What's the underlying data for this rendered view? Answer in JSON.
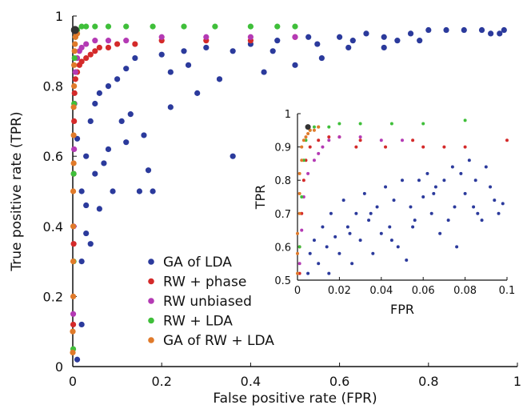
{
  "chart_data": [
    {
      "type": "scatter",
      "title": "",
      "xlabel": "False positive rate (FPR)",
      "ylabel": "True positive rate (TPR)",
      "xlim": [
        0,
        1
      ],
      "ylim": [
        0,
        1
      ],
      "xticks": [
        "0",
        "0.2",
        "0.4",
        "0.6",
        "0.8",
        "1"
      ],
      "yticks": [
        "0",
        "0.2",
        "0.4",
        "0.6",
        "0.8",
        "1"
      ],
      "grid": false,
      "legend_position": "lower-left",
      "series": [
        {
          "name": "GA of LDA",
          "color": "#2b3a9c",
          "points": [
            [
              0.01,
              0.02
            ],
            [
              0.02,
              0.12
            ],
            [
              0.02,
              0.3
            ],
            [
              0.03,
              0.46
            ],
            [
              0.01,
              0.65
            ],
            [
              0.02,
              0.5
            ],
            [
              0.03,
              0.6
            ],
            [
              0.04,
              0.7
            ],
            [
              0.05,
              0.55
            ],
            [
              0.06,
              0.45
            ],
            [
              0.05,
              0.75
            ],
            [
              0.06,
              0.78
            ],
            [
              0.08,
              0.8
            ],
            [
              0.08,
              0.62
            ],
            [
              0.09,
              0.5
            ],
            [
              0.1,
              0.82
            ],
            [
              0.11,
              0.7
            ],
            [
              0.12,
              0.85
            ],
            [
              0.13,
              0.72
            ],
            [
              0.14,
              0.88
            ],
            [
              0.16,
              0.66
            ],
            [
              0.18,
              0.5
            ],
            [
              0.2,
              0.89
            ],
            [
              0.22,
              0.74
            ],
            [
              0.25,
              0.9
            ],
            [
              0.28,
              0.78
            ],
            [
              0.3,
              0.91
            ],
            [
              0.33,
              0.82
            ],
            [
              0.36,
              0.9
            ],
            [
              0.36,
              0.6
            ],
            [
              0.4,
              0.92
            ],
            [
              0.43,
              0.84
            ],
            [
              0.46,
              0.93
            ],
            [
              0.5,
              0.86
            ],
            [
              0.53,
              0.94
            ],
            [
              0.56,
              0.88
            ],
            [
              0.6,
              0.94
            ],
            [
              0.63,
              0.93
            ],
            [
              0.66,
              0.95
            ],
            [
              0.7,
              0.94
            ],
            [
              0.73,
              0.93
            ],
            [
              0.76,
              0.95
            ],
            [
              0.8,
              0.96
            ],
            [
              0.84,
              0.96
            ],
            [
              0.88,
              0.96
            ],
            [
              0.92,
              0.96
            ],
            [
              0.94,
              0.95
            ],
            [
              0.96,
              0.95
            ],
            [
              0.97,
              0.96
            ],
            [
              0.15,
              0.5
            ],
            [
              0.17,
              0.56
            ],
            [
              0.12,
              0.64
            ],
            [
              0.03,
              0.38
            ],
            [
              0.04,
              0.35
            ],
            [
              0.07,
              0.58
            ],
            [
              0.22,
              0.84
            ],
            [
              0.26,
              0.86
            ],
            [
              0.45,
              0.9
            ],
            [
              0.55,
              0.92
            ],
            [
              0.62,
              0.91
            ],
            [
              0.7,
              0.91
            ],
            [
              0.78,
              0.93
            ]
          ]
        },
        {
          "name": "RW + phase",
          "color": "#d42a2a",
          "points": [
            [
              0.001,
              0.12
            ],
            [
              0.002,
              0.35
            ],
            [
              0.002,
              0.55
            ],
            [
              0.003,
              0.7
            ],
            [
              0.004,
              0.78
            ],
            [
              0.006,
              0.82
            ],
            [
              0.01,
              0.84
            ],
            [
              0.015,
              0.86
            ],
            [
              0.02,
              0.87
            ],
            [
              0.03,
              0.88
            ],
            [
              0.04,
              0.89
            ],
            [
              0.05,
              0.9
            ],
            [
              0.06,
              0.91
            ],
            [
              0.08,
              0.91
            ],
            [
              0.1,
              0.92
            ],
            [
              0.14,
              0.92
            ],
            [
              0.2,
              0.93
            ],
            [
              0.3,
              0.93
            ],
            [
              0.4,
              0.93
            ],
            [
              0.5,
              0.94
            ]
          ]
        },
        {
          "name": "RW unbiased",
          "color": "#b43ab4",
          "points": [
            [
              0.001,
              0.15
            ],
            [
              0.002,
              0.4
            ],
            [
              0.003,
              0.62
            ],
            [
              0.004,
              0.75
            ],
            [
              0.006,
              0.84
            ],
            [
              0.01,
              0.88
            ],
            [
              0.015,
              0.9
            ],
            [
              0.02,
              0.91
            ],
            [
              0.03,
              0.92
            ],
            [
              0.05,
              0.93
            ],
            [
              0.08,
              0.93
            ],
            [
              0.12,
              0.93
            ],
            [
              0.2,
              0.94
            ],
            [
              0.3,
              0.94
            ],
            [
              0.4,
              0.94
            ],
            [
              0.5,
              0.94
            ]
          ]
        },
        {
          "name": "RW + LDA",
          "color": "#3fbf3a",
          "points": [
            [
              0.001,
              0.05
            ],
            [
              0.002,
              0.3
            ],
            [
              0.002,
              0.55
            ],
            [
              0.003,
              0.75
            ],
            [
              0.004,
              0.88
            ],
            [
              0.006,
              0.94
            ],
            [
              0.01,
              0.96
            ],
            [
              0.02,
              0.97
            ],
            [
              0.03,
              0.97
            ],
            [
              0.05,
              0.97
            ],
            [
              0.08,
              0.97
            ],
            [
              0.12,
              0.97
            ],
            [
              0.18,
              0.97
            ],
            [
              0.25,
              0.97
            ],
            [
              0.32,
              0.97
            ],
            [
              0.4,
              0.97
            ],
            [
              0.46,
              0.97
            ],
            [
              0.5,
              0.97
            ]
          ]
        },
        {
          "name": "GA of RW + LDA",
          "color": "#e07a2a",
          "points": [
            [
              0.0,
              0.04
            ],
            [
              0.0,
              0.1
            ],
            [
              0.001,
              0.2
            ],
            [
              0.001,
              0.3
            ],
            [
              0.001,
              0.4
            ],
            [
              0.001,
              0.5
            ],
            [
              0.002,
              0.58
            ],
            [
              0.002,
              0.66
            ],
            [
              0.002,
              0.74
            ],
            [
              0.003,
              0.8
            ],
            [
              0.003,
              0.86
            ],
            [
              0.004,
              0.9
            ],
            [
              0.005,
              0.92
            ],
            [
              0.006,
              0.94
            ],
            [
              0.008,
              0.95
            ],
            [
              0.01,
              0.95
            ]
          ]
        }
      ],
      "highlight_point": {
        "x": 0.005,
        "y": 0.96,
        "color": "#333333"
      }
    },
    {
      "type": "scatter",
      "title": "",
      "xlabel": "FPR",
      "ylabel": "TPR",
      "xlim": [
        0,
        0.1
      ],
      "ylim": [
        0.5,
        1
      ],
      "xticks": [
        "0",
        "0.02",
        "0.04",
        "0.06",
        "0.08",
        "0.1"
      ],
      "yticks": [
        "0.5",
        "0.6",
        "0.7",
        "0.8",
        "0.9",
        "1"
      ],
      "grid": false,
      "series": [
        {
          "name": "GA of LDA",
          "color": "#2b3a9c",
          "points": [
            [
              0.005,
              0.52
            ],
            [
              0.006,
              0.58
            ],
            [
              0.008,
              0.62
            ],
            [
              0.01,
              0.55
            ],
            [
              0.012,
              0.66
            ],
            [
              0.014,
              0.6
            ],
            [
              0.016,
              0.7
            ],
            [
              0.018,
              0.63
            ],
            [
              0.02,
              0.58
            ],
            [
              0.022,
              0.74
            ],
            [
              0.024,
              0.66
            ],
            [
              0.026,
              0.55
            ],
            [
              0.028,
              0.7
            ],
            [
              0.03,
              0.62
            ],
            [
              0.032,
              0.76
            ],
            [
              0.034,
              0.68
            ],
            [
              0.036,
              0.58
            ],
            [
              0.038,
              0.72
            ],
            [
              0.04,
              0.64
            ],
            [
              0.042,
              0.78
            ],
            [
              0.044,
              0.66
            ],
            [
              0.046,
              0.74
            ],
            [
              0.048,
              0.6
            ],
            [
              0.05,
              0.8
            ],
            [
              0.052,
              0.56
            ],
            [
              0.054,
              0.72
            ],
            [
              0.056,
              0.68
            ],
            [
              0.058,
              0.8
            ],
            [
              0.06,
              0.75
            ],
            [
              0.062,
              0.82
            ],
            [
              0.064,
              0.7
            ],
            [
              0.066,
              0.78
            ],
            [
              0.068,
              0.64
            ],
            [
              0.07,
              0.8
            ],
            [
              0.072,
              0.68
            ],
            [
              0.074,
              0.84
            ],
            [
              0.076,
              0.6
            ],
            [
              0.078,
              0.82
            ],
            [
              0.08,
              0.76
            ],
            [
              0.082,
              0.86
            ],
            [
              0.084,
              0.72
            ],
            [
              0.086,
              0.7
            ],
            [
              0.088,
              0.68
            ],
            [
              0.09,
              0.84
            ],
            [
              0.092,
              0.78
            ],
            [
              0.094,
              0.74
            ],
            [
              0.096,
              0.7
            ],
            [
              0.098,
              0.73
            ],
            [
              0.015,
              0.52
            ],
            [
              0.025,
              0.64
            ],
            [
              0.035,
              0.7
            ],
            [
              0.045,
              0.62
            ],
            [
              0.055,
              0.66
            ],
            [
              0.065,
              0.76
            ],
            [
              0.075,
              0.72
            ],
            [
              0.085,
              0.8
            ]
          ]
        },
        {
          "name": "RW + phase",
          "color": "#d42a2a",
          "points": [
            [
              0.001,
              0.52
            ],
            [
              0.001,
              0.6
            ],
            [
              0.002,
              0.7
            ],
            [
              0.003,
              0.8
            ],
            [
              0.004,
              0.86
            ],
            [
              0.006,
              0.9
            ],
            [
              0.01,
              0.92
            ],
            [
              0.015,
              0.93
            ],
            [
              0.02,
              0.93
            ],
            [
              0.028,
              0.9
            ],
            [
              0.03,
              0.92
            ],
            [
              0.042,
              0.9
            ],
            [
              0.055,
              0.92
            ],
            [
              0.06,
              0.9
            ],
            [
              0.07,
              0.9
            ],
            [
              0.08,
              0.9
            ],
            [
              0.1,
              0.92
            ]
          ]
        },
        {
          "name": "RW unbiased",
          "color": "#b43ab4",
          "points": [
            [
              0.001,
              0.55
            ],
            [
              0.002,
              0.65
            ],
            [
              0.003,
              0.75
            ],
            [
              0.005,
              0.82
            ],
            [
              0.008,
              0.86
            ],
            [
              0.01,
              0.88
            ],
            [
              0.012,
              0.9
            ],
            [
              0.015,
              0.92
            ],
            [
              0.02,
              0.93
            ],
            [
              0.03,
              0.93
            ],
            [
              0.04,
              0.92
            ],
            [
              0.05,
              0.92
            ]
          ]
        },
        {
          "name": "RW + LDA",
          "color": "#3fbf3a",
          "points": [
            [
              0.001,
              0.6
            ],
            [
              0.002,
              0.75
            ],
            [
              0.003,
              0.86
            ],
            [
              0.004,
              0.92
            ],
            [
              0.006,
              0.95
            ],
            [
              0.008,
              0.96
            ],
            [
              0.01,
              0.96
            ],
            [
              0.015,
              0.96
            ],
            [
              0.02,
              0.97
            ],
            [
              0.03,
              0.97
            ],
            [
              0.045,
              0.97
            ],
            [
              0.06,
              0.97
            ],
            [
              0.08,
              0.98
            ]
          ]
        },
        {
          "name": "GA of RW + LDA",
          "color": "#e07a2a",
          "points": [
            [
              0.0,
              0.52
            ],
            [
              0.0,
              0.58
            ],
            [
              0.0,
              0.64
            ],
            [
              0.001,
              0.7
            ],
            [
              0.001,
              0.76
            ],
            [
              0.001,
              0.82
            ],
            [
              0.002,
              0.86
            ],
            [
              0.002,
              0.9
            ],
            [
              0.003,
              0.92
            ],
            [
              0.004,
              0.93
            ],
            [
              0.005,
              0.94
            ],
            [
              0.006,
              0.95
            ],
            [
              0.008,
              0.95
            ],
            [
              0.01,
              0.96
            ]
          ]
        }
      ],
      "highlight_point": {
        "x": 0.005,
        "y": 0.96,
        "color": "#333333"
      }
    }
  ],
  "legend": {
    "entries": [
      {
        "label": "GA of LDA",
        "color": "#2b3a9c"
      },
      {
        "label": "RW + phase",
        "color": "#d42a2a"
      },
      {
        "label": "RW unbiased",
        "color": "#b43ab4"
      },
      {
        "label": "RW + LDA",
        "color": "#3fbf3a"
      },
      {
        "label": "GA of RW + LDA",
        "color": "#e07a2a"
      }
    ]
  }
}
